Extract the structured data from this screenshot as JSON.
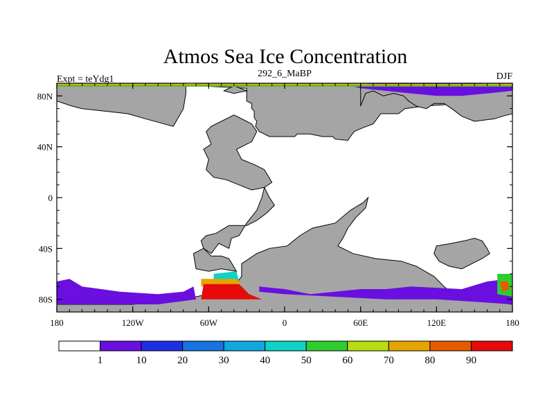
{
  "chart_data": {
    "type": "heatmap",
    "title": "Atmos Sea Ice Concentration",
    "left_label": "Expt = teYdg1",
    "center_label": "292_6_MaBP",
    "right_label": "DJF",
    "x_ticks": [
      {
        "value": -180,
        "label": "180"
      },
      {
        "value": -120,
        "label": "120W"
      },
      {
        "value": -60,
        "label": "60W"
      },
      {
        "value": 0,
        "label": "0"
      },
      {
        "value": 60,
        "label": "60E"
      },
      {
        "value": 120,
        "label": "120E"
      },
      {
        "value": 180,
        "label": "180"
      }
    ],
    "y_ticks": [
      {
        "value": 80,
        "label": "80N"
      },
      {
        "value": 40,
        "label": "40N"
      },
      {
        "value": 0,
        "label": "0"
      },
      {
        "value": -40,
        "label": "40S"
      },
      {
        "value": -80,
        "label": "80S"
      }
    ],
    "xlim": [
      -180,
      180
    ],
    "ylim": [
      -90,
      90
    ],
    "units": "%",
    "colorbar": {
      "levels": [
        1,
        10,
        20,
        30,
        40,
        50,
        60,
        70,
        80,
        90
      ],
      "colors": [
        "#ffffff",
        "#6a0fe0",
        "#1f2ee0",
        "#1673e0",
        "#0fa8e0",
        "#0fd2c8",
        "#2fcc2f",
        "#b8dc12",
        "#e6a400",
        "#e65a00",
        "#e60a0a"
      ]
    },
    "land_color": "#a5a5a5",
    "land_regions": [
      [
        [
          -30,
          86
        ],
        [
          -30,
          76
        ],
        [
          -26,
          74
        ],
        [
          -26,
          70
        ],
        [
          -24,
          68
        ],
        [
          -24,
          63
        ],
        [
          -22,
          60
        ],
        [
          -23,
          56
        ],
        [
          -20,
          52
        ],
        [
          -12,
          48
        ],
        [
          8,
          48
        ],
        [
          10,
          50
        ],
        [
          20,
          50
        ],
        [
          30,
          48
        ],
        [
          38,
          48
        ],
        [
          40,
          46
        ],
        [
          50,
          45
        ],
        [
          52,
          48
        ],
        [
          55,
          52
        ],
        [
          62,
          55
        ],
        [
          70,
          58
        ],
        [
          76,
          66
        ],
        [
          90,
          66
        ],
        [
          95,
          70
        ],
        [
          110,
          72
        ],
        [
          125,
          73
        ],
        [
          140,
          75
        ],
        [
          150,
          77
        ],
        [
          160,
          80
        ],
        [
          168,
          82
        ],
        [
          180,
          84
        ],
        [
          180,
          90
        ],
        [
          -70,
          90
        ],
        [
          -70,
          88
        ],
        [
          -30,
          86
        ]
      ],
      [
        [
          -40,
          88
        ],
        [
          -48,
          84
        ],
        [
          -40,
          82
        ],
        [
          -30,
          84
        ]
      ],
      [
        [
          -62,
          52
        ],
        [
          -58,
          56
        ],
        [
          -50,
          60
        ],
        [
          -40,
          65
        ],
        [
          -30,
          60
        ],
        [
          -26,
          58
        ],
        [
          -22,
          52
        ],
        [
          -26,
          44
        ],
        [
          -34,
          40
        ],
        [
          -38,
          38
        ],
        [
          -34,
          30
        ],
        [
          -24,
          26
        ],
        [
          -16,
          22
        ],
        [
          -10,
          12
        ],
        [
          -16,
          8
        ],
        [
          -26,
          6
        ],
        [
          -36,
          10
        ],
        [
          -46,
          14
        ],
        [
          -56,
          16
        ],
        [
          -62,
          22
        ],
        [
          -60,
          30
        ],
        [
          -64,
          38
        ],
        [
          -58,
          42
        ],
        [
          -62,
          52
        ]
      ],
      [
        [
          -80,
          70
        ],
        [
          -88,
          56
        ],
        [
          -110,
          62
        ],
        [
          -124,
          66
        ],
        [
          -160,
          70
        ],
        [
          -168,
          72
        ],
        [
          -180,
          76
        ],
        [
          -180,
          90
        ],
        [
          -78,
          90
        ],
        [
          -78,
          82
        ],
        [
          -80,
          70
        ]
      ],
      [
        [
          60,
          72
        ],
        [
          64,
          82
        ],
        [
          70,
          84
        ],
        [
          78,
          80
        ],
        [
          86,
          82
        ],
        [
          94,
          80
        ],
        [
          98,
          76
        ],
        [
          104,
          72
        ],
        [
          112,
          70
        ],
        [
          118,
          74
        ],
        [
          126,
          74
        ],
        [
          132,
          70
        ],
        [
          140,
          64
        ],
        [
          150,
          60
        ],
        [
          166,
          62
        ],
        [
          172,
          64
        ],
        [
          180,
          66
        ],
        [
          180,
          90
        ],
        [
          60,
          90
        ],
        [
          60,
          72
        ]
      ],
      [
        [
          -16,
          8
        ],
        [
          -12,
          0
        ],
        [
          -8,
          -6
        ],
        [
          -14,
          -12
        ],
        [
          -22,
          -18
        ],
        [
          -30,
          -22
        ],
        [
          -44,
          -22
        ],
        [
          -54,
          -28
        ],
        [
          -62,
          -30
        ],
        [
          -66,
          -34
        ],
        [
          -64,
          -40
        ],
        [
          -58,
          -44
        ],
        [
          -52,
          -36
        ],
        [
          -44,
          -40
        ],
        [
          -42,
          -32
        ],
        [
          -36,
          -30
        ],
        [
          -30,
          -20
        ],
        [
          -22,
          -10
        ],
        [
          -18,
          0
        ],
        [
          -16,
          8
        ]
      ],
      [
        [
          -70,
          -56
        ],
        [
          -72,
          -44
        ],
        [
          -64,
          -40
        ],
        [
          -58,
          -46
        ],
        [
          -50,
          -46
        ],
        [
          -44,
          -48
        ],
        [
          -38,
          -58
        ],
        [
          -50,
          -56
        ],
        [
          -60,
          -58
        ],
        [
          -70,
          -56
        ]
      ],
      [
        [
          -34,
          -52
        ],
        [
          -22,
          -44
        ],
        [
          -12,
          -40
        ],
        [
          2,
          -38
        ],
        [
          12,
          -30
        ],
        [
          22,
          -24
        ],
        [
          40,
          -20
        ],
        [
          52,
          -10
        ],
        [
          62,
          -4
        ],
        [
          66,
          0
        ],
        [
          64,
          -8
        ],
        [
          56,
          -16
        ],
        [
          50,
          -24
        ],
        [
          46,
          -32
        ],
        [
          42,
          -38
        ],
        [
          54,
          -44
        ],
        [
          72,
          -48
        ],
        [
          92,
          -50
        ],
        [
          104,
          -54
        ],
        [
          118,
          -62
        ],
        [
          126,
          -70
        ],
        [
          136,
          -78
        ],
        [
          150,
          -80
        ],
        [
          166,
          -82
        ],
        [
          180,
          -84
        ],
        [
          180,
          -90
        ],
        [
          -180,
          -90
        ],
        [
          -180,
          -84
        ],
        [
          -120,
          -84
        ],
        [
          -80,
          -80
        ],
        [
          -60,
          -76
        ],
        [
          -40,
          -70
        ],
        [
          -34,
          -62
        ],
        [
          -34,
          -52
        ]
      ],
      [
        [
          120,
          -38
        ],
        [
          132,
          -36
        ],
        [
          142,
          -34
        ],
        [
          150,
          -32
        ],
        [
          156,
          -34
        ],
        [
          160,
          -40
        ],
        [
          162,
          -44
        ],
        [
          156,
          -48
        ],
        [
          148,
          -52
        ],
        [
          140,
          -56
        ],
        [
          130,
          -54
        ],
        [
          122,
          -50
        ],
        [
          118,
          -44
        ],
        [
          120,
          -38
        ]
      ]
    ],
    "ice_regions": [
      {
        "value": 3,
        "points": [
          [
            -180,
            -66
          ],
          [
            -170,
            -64
          ],
          [
            -160,
            -70
          ],
          [
            -130,
            -74
          ],
          [
            -100,
            -76
          ],
          [
            -80,
            -74
          ],
          [
            -72,
            -70
          ],
          [
            -70,
            -80
          ],
          [
            -100,
            -84
          ],
          [
            -140,
            -84
          ],
          [
            -180,
            -84
          ]
        ]
      },
      {
        "value": 3,
        "points": [
          [
            -20,
            -70
          ],
          [
            0,
            -72
          ],
          [
            20,
            -76
          ],
          [
            40,
            -74
          ],
          [
            60,
            -72
          ],
          [
            80,
            -72
          ],
          [
            100,
            -70
          ],
          [
            140,
            -72
          ],
          [
            160,
            -66
          ],
          [
            176,
            -64
          ],
          [
            180,
            -70
          ],
          [
            180,
            -84
          ],
          [
            150,
            -82
          ],
          [
            120,
            -80
          ],
          [
            80,
            -80
          ],
          [
            40,
            -78
          ],
          [
            0,
            -76
          ],
          [
            -20,
            -74
          ]
        ]
      },
      {
        "value": 5,
        "points": [
          [
            52,
            88
          ],
          [
            70,
            90
          ],
          [
            150,
            90
          ],
          [
            180,
            88
          ],
          [
            180,
            84
          ],
          [
            160,
            82
          ],
          [
            140,
            80
          ],
          [
            120,
            80
          ],
          [
            100,
            82
          ],
          [
            80,
            84
          ],
          [
            60,
            86
          ]
        ]
      },
      {
        "value": 45,
        "points": [
          [
            -56,
            -60
          ],
          [
            -38,
            -58
          ],
          [
            -36,
            -66
          ],
          [
            -56,
            -66
          ]
        ]
      },
      {
        "value": 75,
        "points": [
          [
            -66,
            -64
          ],
          [
            -38,
            -64
          ],
          [
            -34,
            -70
          ],
          [
            -66,
            -70
          ]
        ]
      },
      {
        "value": 95,
        "points": [
          [
            -64,
            -68
          ],
          [
            -36,
            -68
          ],
          [
            -28,
            -76
          ],
          [
            -18,
            -80
          ],
          [
            -66,
            -80
          ]
        ]
      },
      {
        "value": 55,
        "points": [
          [
            168,
            -60
          ],
          [
            180,
            -60
          ],
          [
            180,
            -78
          ],
          [
            168,
            -76
          ]
        ]
      },
      {
        "value": 85,
        "points": [
          [
            170,
            -66
          ],
          [
            176,
            -66
          ],
          [
            178,
            -72
          ],
          [
            172,
            -74
          ]
        ]
      }
    ]
  }
}
